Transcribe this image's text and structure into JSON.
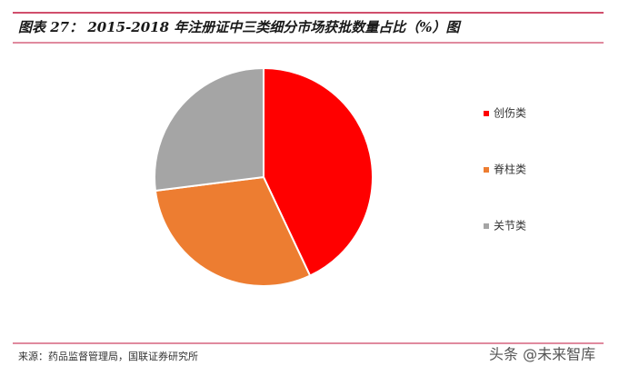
{
  "chart_data": {
    "type": "pie",
    "title": "图表 27： 2015-2018 年注册证中三类细分市场获批数量占比（%）图",
    "categories": [
      "创伤类",
      "脊柱类",
      "关节类"
    ],
    "values": [
      43,
      30,
      27
    ],
    "colors": [
      "#ff0000",
      "#ed7d31",
      "#a5a5a5"
    ],
    "legend": "right"
  },
  "source": "来源：药品监督管理局，国联证券研究所",
  "watermark": "头条 @未来智库"
}
